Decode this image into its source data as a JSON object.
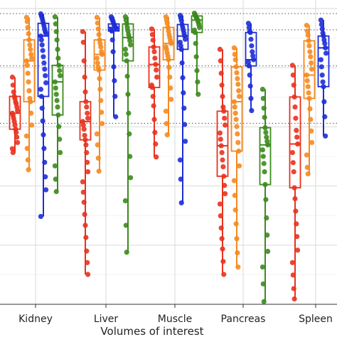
{
  "chart_data": {
    "type": "boxplot",
    "xlabel": "Volumes of interest",
    "ylabel": "",
    "categories": [
      "Kidney",
      "Liver",
      "Muscle",
      "Pancreas",
      "Spleen"
    ],
    "ylim": [
      0,
      100
    ],
    "grid": "on",
    "reference_lines": [
      {
        "y": 98.3,
        "style": "dotted"
      },
      {
        "y": 92.8,
        "style": "dotted"
      },
      {
        "y": 80.6,
        "style": "dotted"
      },
      {
        "y": 61.2,
        "style": "dotted"
      }
    ],
    "series": [
      {
        "color": "#e8321e",
        "boxes": [
          {
            "category": "Kidney",
            "min": 51.3,
            "q1": 59.2,
            "median": 64.6,
            "q3": 70.3,
            "max": 76.8,
            "points": [
              76.8,
              74.1,
              71.8,
              70.3,
              69.6,
              68.5,
              67.8,
              66.7,
              65.5,
              64.6,
              63.9,
              62.9,
              61.8,
              60.6,
              59.2,
              58.1,
              56.5,
              54.7,
              52.6,
              51.3
            ]
          },
          {
            "category": "Liver",
            "min": 10.1,
            "q1": 55.6,
            "median": 61.8,
            "q3": 68.5,
            "max": 92.2,
            "points": [
              92.2,
              88.6,
              82.3,
              76.8,
              71.8,
              68.5,
              66.7,
              64.6,
              62.9,
              61.8,
              60.6,
              59.2,
              57.1,
              55.6,
              53.9,
              51.3,
              48.0,
              44.8,
              41.4,
              37.9,
              34.5,
              30.4,
              26.7,
              22.6,
              18.0,
              14.1,
              10.1
            ]
          },
          {
            "category": "Muscle",
            "min": 49.8,
            "q1": 73.3,
            "median": 81.1,
            "q3": 87.0,
            "max": 93.1,
            "points": [
              93.1,
              91.2,
              89.3,
              87.0,
              85.4,
              83.2,
              81.1,
              79.2,
              76.8,
              74.1,
              73.3,
              70.3,
              67.1,
              62.5,
              58.1,
              54.2,
              49.8
            ]
          },
          {
            "category": "Pancreas",
            "min": 10.1,
            "q1": 43.3,
            "median": 53.6,
            "q3": 65.3,
            "max": 86.2,
            "points": [
              86.2,
              82.3,
              78.1,
              74.1,
              70.3,
              66.7,
              65.3,
              62.9,
              60.6,
              57.9,
              55.8,
              53.6,
              51.3,
              48.8,
              46.5,
              43.3,
              40.2,
              37.4,
              33.9,
              29.9,
              25.8,
              22.2,
              18.7,
              14.5,
              10.1
            ]
          },
          {
            "category": "Spleen",
            "min": 1.8,
            "q1": 39.4,
            "median": 54.2,
            "q3": 70.1,
            "max": 80.8,
            "points": [
              80.8,
              77.5,
              74.1,
              70.1,
              66.7,
              62.9,
              58.8,
              56.5,
              54.2,
              51.3,
              47.9,
              44.8,
              39.4,
              35.7,
              31.5,
              27.2,
              22.9,
              18.3,
              14.1,
              9.9,
              5.3,
              1.8
            ]
          }
        ]
      },
      {
        "color": "#f5891f",
        "boxes": [
          {
            "category": "Kidney",
            "min": 45.5,
            "q1": 68.5,
            "median": 82.3,
            "q3": 89.4,
            "max": 97.0,
            "points": [
              97.0,
              95.6,
              93.6,
              91.5,
              89.4,
              87.7,
              86.2,
              84.5,
              83.2,
              82.3,
              80.8,
              78.1,
              75.2,
              72.2,
              69.6,
              68.5,
              64.6,
              60.6,
              56.9,
              52.7,
              48.8,
              45.5
            ]
          },
          {
            "category": "Liver",
            "min": 45.0,
            "q1": 79.2,
            "median": 84.5,
            "q3": 89.4,
            "max": 97.0,
            "points": [
              97.0,
              95.1,
              93.1,
              91.2,
              89.4,
              88.2,
              87.0,
              85.4,
              84.5,
              83.2,
              81.6,
              80.1,
              79.2,
              76.3,
              72.7,
              68.9,
              64.9,
              61.1,
              57.6,
              53.9,
              49.4,
              45.0
            ]
          },
          {
            "category": "Muscle",
            "min": 57.3,
            "q1": 82.7,
            "median": 88.2,
            "q3": 93.6,
            "max": 97.2,
            "points": [
              97.2,
              96.1,
              95.0,
              93.6,
              92.4,
              91.2,
              90.2,
              89.1,
              88.2,
              87.1,
              86.2,
              85.0,
              83.9,
              82.7,
              80.1,
              76.8,
              73.1,
              69.3,
              65.3,
              61.1,
              57.3
            ]
          },
          {
            "category": "Pancreas",
            "min": 12.6,
            "q1": 51.8,
            "median": 68.5,
            "q3": 80.3,
            "max": 86.7,
            "points": [
              86.7,
              84.5,
              82.7,
              80.3,
              78.3,
              76.3,
              74.4,
              72.2,
              70.3,
              68.5,
              66.7,
              64.6,
              62.5,
              60.1,
              57.6,
              54.7,
              51.8,
              46.8,
              41.8,
              36.8,
              31.9,
              27.2,
              22.2,
              17.4,
              12.6
            ]
          },
          {
            "category": "Spleen",
            "min": 44.1,
            "q1": 69.6,
            "median": 77.5,
            "q3": 89.1,
            "max": 94.3,
            "points": [
              94.3,
              92.4,
              91.0,
              89.1,
              87.4,
              85.4,
              83.7,
              81.6,
              79.5,
              77.5,
              75.6,
              73.6,
              71.5,
              69.6,
              66.1,
              62.5,
              58.6,
              54.7,
              50.5,
              46.3,
              44.1
            ]
          }
        ]
      },
      {
        "color": "#1e2ed6",
        "boxes": [
          {
            "category": "Kidney",
            "min": 29.7,
            "q1": 70.3,
            "median": 90.7,
            "q3": 95.0,
            "max": 98.2,
            "points": [
              98.2,
              97.5,
              96.8,
              95.9,
              95.0,
              94.1,
              93.1,
              92.2,
              91.5,
              90.7,
              89.4,
              87.7,
              85.8,
              83.7,
              81.6,
              79.5,
              77.3,
              74.9,
              72.7,
              70.3,
              66.3,
              62.0,
              57.3,
              52.7,
              48.0,
              43.1,
              38.7,
              29.7
            ]
          },
          {
            "category": "Liver",
            "min": 63.4,
            "q1": 92.4,
            "median": 93.6,
            "q3": 94.8,
            "max": 97.2,
            "points": [
              97.2,
              96.6,
              96.1,
              95.6,
              94.8,
              94.3,
              93.8,
              93.6,
              93.1,
              92.7,
              92.4,
              89.4,
              85.4,
              80.3,
              75.6,
              70.3,
              63.4
            ]
          },
          {
            "category": "Muscle",
            "min": 34.3,
            "q1": 86.2,
            "median": 90.7,
            "q3": 94.6,
            "max": 97.7,
            "points": [
              97.7,
              96.8,
              95.9,
              94.6,
              93.6,
              92.7,
              91.7,
              90.7,
              89.6,
              88.6,
              87.4,
              86.2,
              81.6,
              76.6,
              71.5,
              66.3,
              60.8,
              55.1,
              48.8,
              42.3,
              34.3
            ]
          },
          {
            "category": "Pancreas",
            "min": 65.5,
            "q1": 80.6,
            "median": 82.7,
            "q3": 91.9,
            "max": 95.0,
            "points": [
              95.0,
              93.6,
              92.2,
              91.9,
              89.6,
              87.4,
              85.4,
              84.0,
              82.7,
              81.8,
              80.6,
              77.5,
              73.8,
              69.6,
              65.5
            ]
          },
          {
            "category": "Spleen",
            "min": 56.9,
            "q1": 73.6,
            "median": 86.7,
            "q3": 90.7,
            "max": 96.1,
            "points": [
              96.1,
              94.6,
              93.1,
              91.7,
              90.7,
              89.4,
              88.2,
              86.7,
              84.9,
              82.7,
              80.3,
              77.5,
              75.2,
              73.6,
              68.5,
              63.4,
              56.9
            ]
          }
        ]
      },
      {
        "color": "#3c8a1e",
        "boxes": [
          {
            "category": "Kidney",
            "min": 38.1,
            "q1": 64.0,
            "median": 75.2,
            "q3": 80.8,
            "max": 97.2,
            "points": [
              97.2,
              94.8,
              92.2,
              89.4,
              86.2,
              83.2,
              80.8,
              79.0,
              77.3,
              75.2,
              73.1,
              71.0,
              68.9,
              66.7,
              64.0,
              60.1,
              55.8,
              51.3,
              46.8,
              42.3,
              38.1
            ]
          },
          {
            "category": "Liver",
            "min": 17.6,
            "q1": 82.3,
            "median": 90.2,
            "q3": 94.8,
            "max": 97.2,
            "points": [
              97.2,
              96.1,
              94.8,
              93.6,
              92.4,
              91.2,
              90.2,
              89.1,
              87.7,
              86.2,
              84.5,
              82.3,
              77.1,
              71.0,
              64.6,
              57.6,
              50.0,
              42.8,
              35.0,
              26.7,
              17.6
            ]
          },
          {
            "category": "Muscle",
            "min": 71.0,
            "q1": 91.9,
            "median": 96.1,
            "q3": 97.5,
            "max": 98.4,
            "points": [
              98.4,
              97.9,
              97.5,
              97.0,
              96.6,
              96.1,
              95.4,
              94.6,
              93.6,
              92.7,
              91.9,
              88.2,
              83.7,
              79.0,
              75.2,
              71.0
            ]
          },
          {
            "category": "Pancreas",
            "min": 0.9,
            "q1": 40.5,
            "median": 53.9,
            "q3": 59.7,
            "max": 72.7,
            "points": [
              72.7,
              69.6,
              66.3,
              63.2,
              59.7,
              58.1,
              56.5,
              55.1,
              53.9,
              52.2,
              50.0,
              47.6,
              44.8,
              40.5,
              35.4,
              29.2,
              23.4,
              17.9,
              12.6,
              6.9,
              0.9
            ]
          }
        ]
      }
    ]
  }
}
